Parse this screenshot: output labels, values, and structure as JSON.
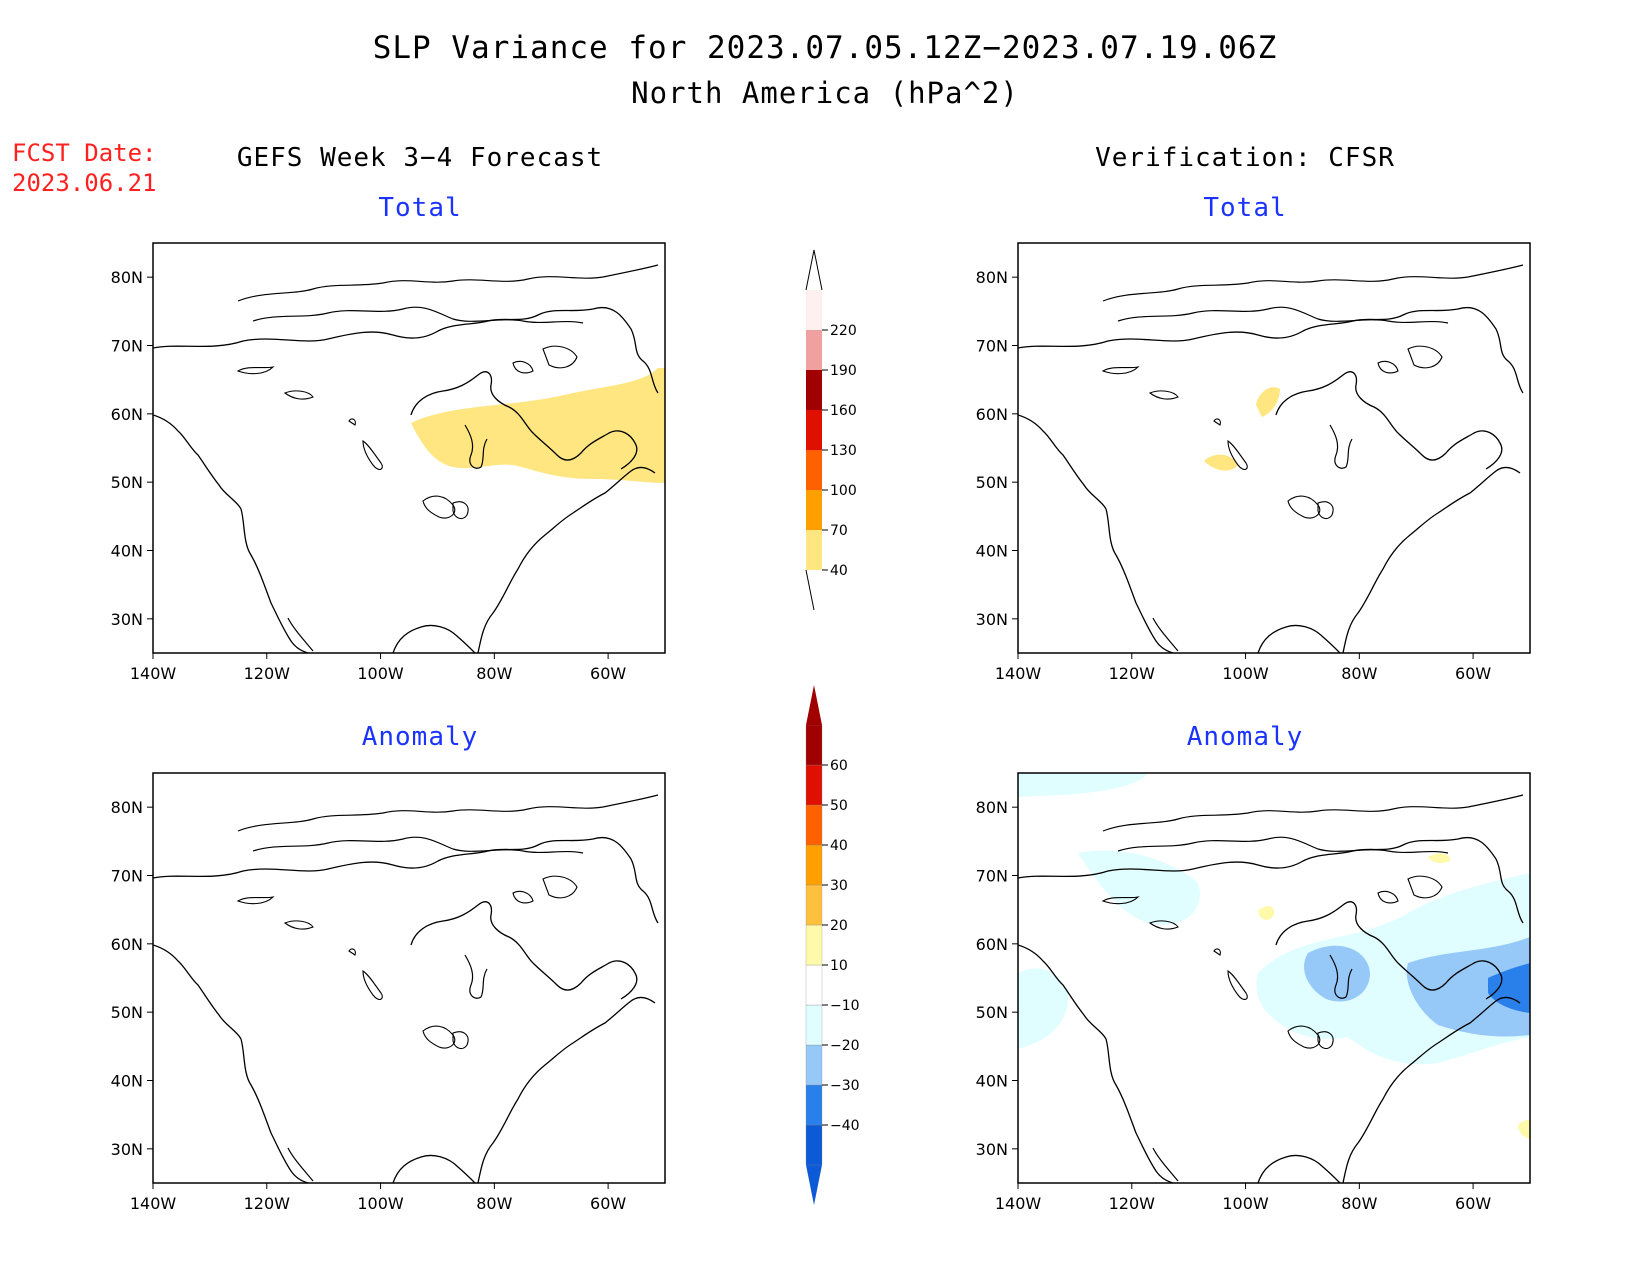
{
  "header": {
    "title": "SLP Variance for 2023.07.05.12Z−2023.07.19.06Z",
    "subtitle": "North America (hPa^2)",
    "fcst_label": "FCST Date:",
    "fcst_date": "2023.06.21",
    "fcst_color": "#ff2020",
    "subtitle_color": "#1a33ff"
  },
  "columns": {
    "left": "GEFS Week 3−4 Forecast",
    "right": "Verification: CFSR"
  },
  "panels": [
    {
      "title": "Total"
    },
    {
      "title": "Total"
    },
    {
      "title": "Anomaly"
    },
    {
      "title": "Anomaly"
    }
  ],
  "axes": {
    "lat_labels": [
      "80N",
      "70N",
      "60N",
      "50N",
      "40N",
      "30N"
    ],
    "lat_values": [
      80,
      70,
      60,
      50,
      40,
      30
    ],
    "lon_labels": [
      "140W",
      "120W",
      "100W",
      "80W",
      "60W"
    ],
    "lon_values": [
      -140,
      -120,
      -100,
      -80,
      -60
    ],
    "lon_range": [
      -140,
      -50
    ],
    "lat_range": [
      25,
      85
    ]
  },
  "colorbars": {
    "total": {
      "levels": [
        "40",
        "70",
        "100",
        "130",
        "160",
        "190",
        "220"
      ],
      "colors": [
        "#ffe680",
        "#ffa000",
        "#ff6000",
        "#e01000",
        "#a00000",
        "#f0a0a0",
        "#fff0f0"
      ]
    },
    "anomaly": {
      "levels": [
        "−40",
        "−30",
        "−20",
        "−10",
        "10",
        "20",
        "30",
        "40",
        "50",
        "60"
      ],
      "colors": [
        "#0c5ad6",
        "#2a80ea",
        "#96c8f8",
        "#e0fdff",
        "#ffffff",
        "#fffaaa",
        "#ffc040",
        "#ffa000",
        "#ff6000",
        "#e01000",
        "#a00000"
      ]
    }
  },
  "shading": {
    "forecast_total": "#ffe680",
    "verif_total": "#ffe680",
    "anom_light_blue": "#e0fdff",
    "anom_mid_blue": "#96c8f8",
    "anom_dark_blue": "#2a80ea",
    "anom_yellow": "#fffaaa"
  }
}
